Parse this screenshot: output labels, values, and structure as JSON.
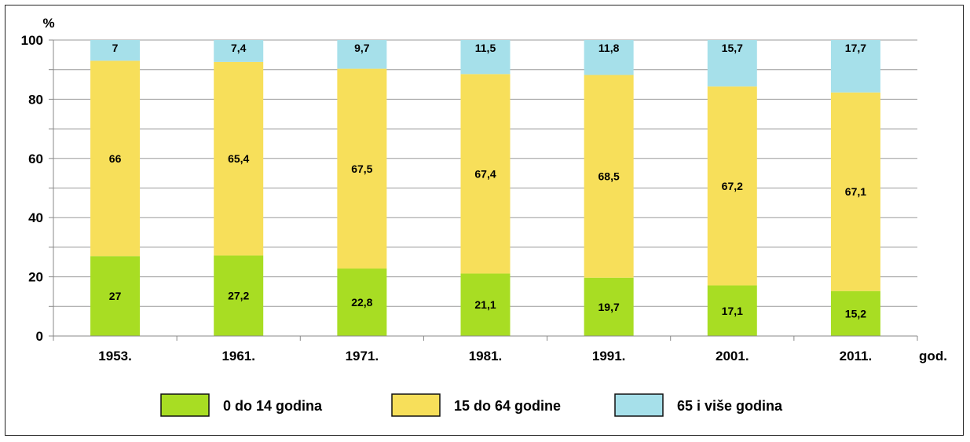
{
  "chart_data": {
    "type": "bar",
    "stacked": true,
    "ylabel": "%",
    "xlabel": "god.",
    "ylim": [
      0,
      100
    ],
    "yticks": [
      0,
      20,
      40,
      60,
      80,
      100
    ],
    "grid": true,
    "legend_position": "bottom",
    "categories": [
      "1953.",
      "1961.",
      "1971.",
      "1981.",
      "1991.",
      "2001.",
      "2011."
    ],
    "series": [
      {
        "name": "0 do 14 godina",
        "color": "#a8dd23",
        "values": [
          27,
          27.2,
          22.8,
          21.1,
          19.7,
          17.1,
          15.2
        ],
        "labels": [
          "27",
          "27,2",
          "22,8",
          "21,1",
          "19,7",
          "17,1",
          "15,2"
        ]
      },
      {
        "name": "15 do 64 godine",
        "color": "#f7df5a",
        "values": [
          66,
          65.4,
          67.5,
          67.4,
          68.5,
          67.2,
          67.1
        ],
        "labels": [
          "66",
          "65,4",
          "67,5",
          "67,4",
          "68,5",
          "67,2",
          "67,1"
        ]
      },
      {
        "name": "65 i više godina",
        "color": "#a6e0ea",
        "values": [
          7,
          7.4,
          9.7,
          11.5,
          11.8,
          15.7,
          17.7
        ],
        "labels": [
          "7",
          "7,4",
          "9,7",
          "11,5",
          "11,8",
          "15,7",
          "17,7"
        ]
      }
    ]
  }
}
